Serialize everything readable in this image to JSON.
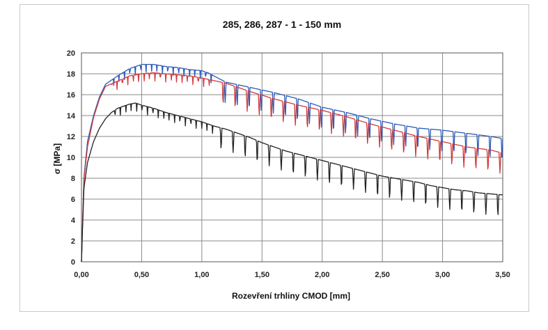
{
  "chart_data": {
    "type": "line",
    "title": "285, 286, 287 - 1 - 150 mm",
    "xlabel": "Rozevření trhliny CMOD [mm]",
    "ylabel": "σ [MPa]",
    "xlim": [
      0,
      3.5
    ],
    "ylim": [
      0,
      20
    ],
    "xticks": [
      "0,00",
      "0,50",
      "1,00",
      "1,50",
      "2,00",
      "2,50",
      "3,00",
      "3,50"
    ],
    "yticks": [
      "0",
      "2",
      "4",
      "6",
      "8",
      "10",
      "12",
      "14",
      "16",
      "18",
      "20"
    ],
    "grid": true,
    "series": [
      {
        "color": "#2a5ab8",
        "x": [
          0,
          0.02,
          0.05,
          0.1,
          0.15,
          0.2,
          0.3,
          0.4,
          0.5,
          0.6,
          0.7,
          0.8,
          0.9,
          1.0,
          1.05,
          1.2,
          1.4,
          1.6,
          1.8,
          2.0,
          2.2,
          2.4,
          2.6,
          2.8,
          3.0,
          3.2,
          3.4,
          3.5
        ],
        "y": [
          0,
          8.0,
          11.5,
          14.0,
          15.8,
          17.0,
          17.8,
          18.5,
          18.9,
          18.9,
          18.7,
          18.6,
          18.4,
          18.3,
          18.1,
          17.2,
          16.7,
          16.2,
          15.6,
          14.8,
          14.3,
          13.7,
          13.2,
          12.8,
          12.6,
          12.3,
          12.0,
          11.8
        ]
      },
      {
        "color": "#d23a3a",
        "x": [
          0,
          0.02,
          0.05,
          0.1,
          0.15,
          0.2,
          0.3,
          0.4,
          0.5,
          0.6,
          0.7,
          0.8,
          0.9,
          1.0,
          1.2,
          1.4,
          1.6,
          1.8,
          2.0,
          2.2,
          2.4,
          2.6,
          2.8,
          3.0,
          3.2,
          3.4,
          3.5
        ],
        "y": [
          0,
          7.8,
          11.0,
          13.8,
          15.6,
          16.8,
          17.3,
          17.8,
          18.0,
          18.1,
          18.0,
          17.9,
          17.8,
          17.6,
          17.1,
          16.3,
          15.6,
          15.0,
          14.5,
          13.9,
          13.2,
          12.6,
          12.0,
          11.5,
          11.0,
          10.7,
          10.4
        ]
      },
      {
        "color": "#222222",
        "x": [
          0,
          0.02,
          0.05,
          0.1,
          0.15,
          0.2,
          0.25,
          0.3,
          0.35,
          0.4,
          0.45,
          0.5,
          0.6,
          0.7,
          0.8,
          0.9,
          1.0,
          1.1,
          1.2,
          1.3,
          1.4,
          1.5,
          1.6,
          1.7,
          1.8,
          1.9,
          2.0,
          2.1,
          2.2,
          2.3,
          2.4,
          2.5,
          2.6,
          2.7,
          2.8,
          2.9,
          3.0,
          3.1,
          3.2,
          3.3,
          3.4,
          3.5
        ],
        "y": [
          0,
          7.0,
          9.5,
          11.5,
          12.8,
          13.7,
          14.3,
          14.7,
          14.9,
          15.1,
          15.2,
          15.0,
          14.7,
          14.3,
          14.0,
          13.7,
          13.4,
          13.0,
          12.7,
          12.3,
          11.9,
          11.4,
          11.0,
          10.6,
          10.3,
          10.0,
          9.7,
          9.4,
          9.1,
          8.8,
          8.5,
          8.2,
          8.0,
          7.8,
          7.6,
          7.3,
          7.1,
          6.9,
          6.8,
          6.6,
          6.5,
          6.4
        ]
      }
    ]
  }
}
